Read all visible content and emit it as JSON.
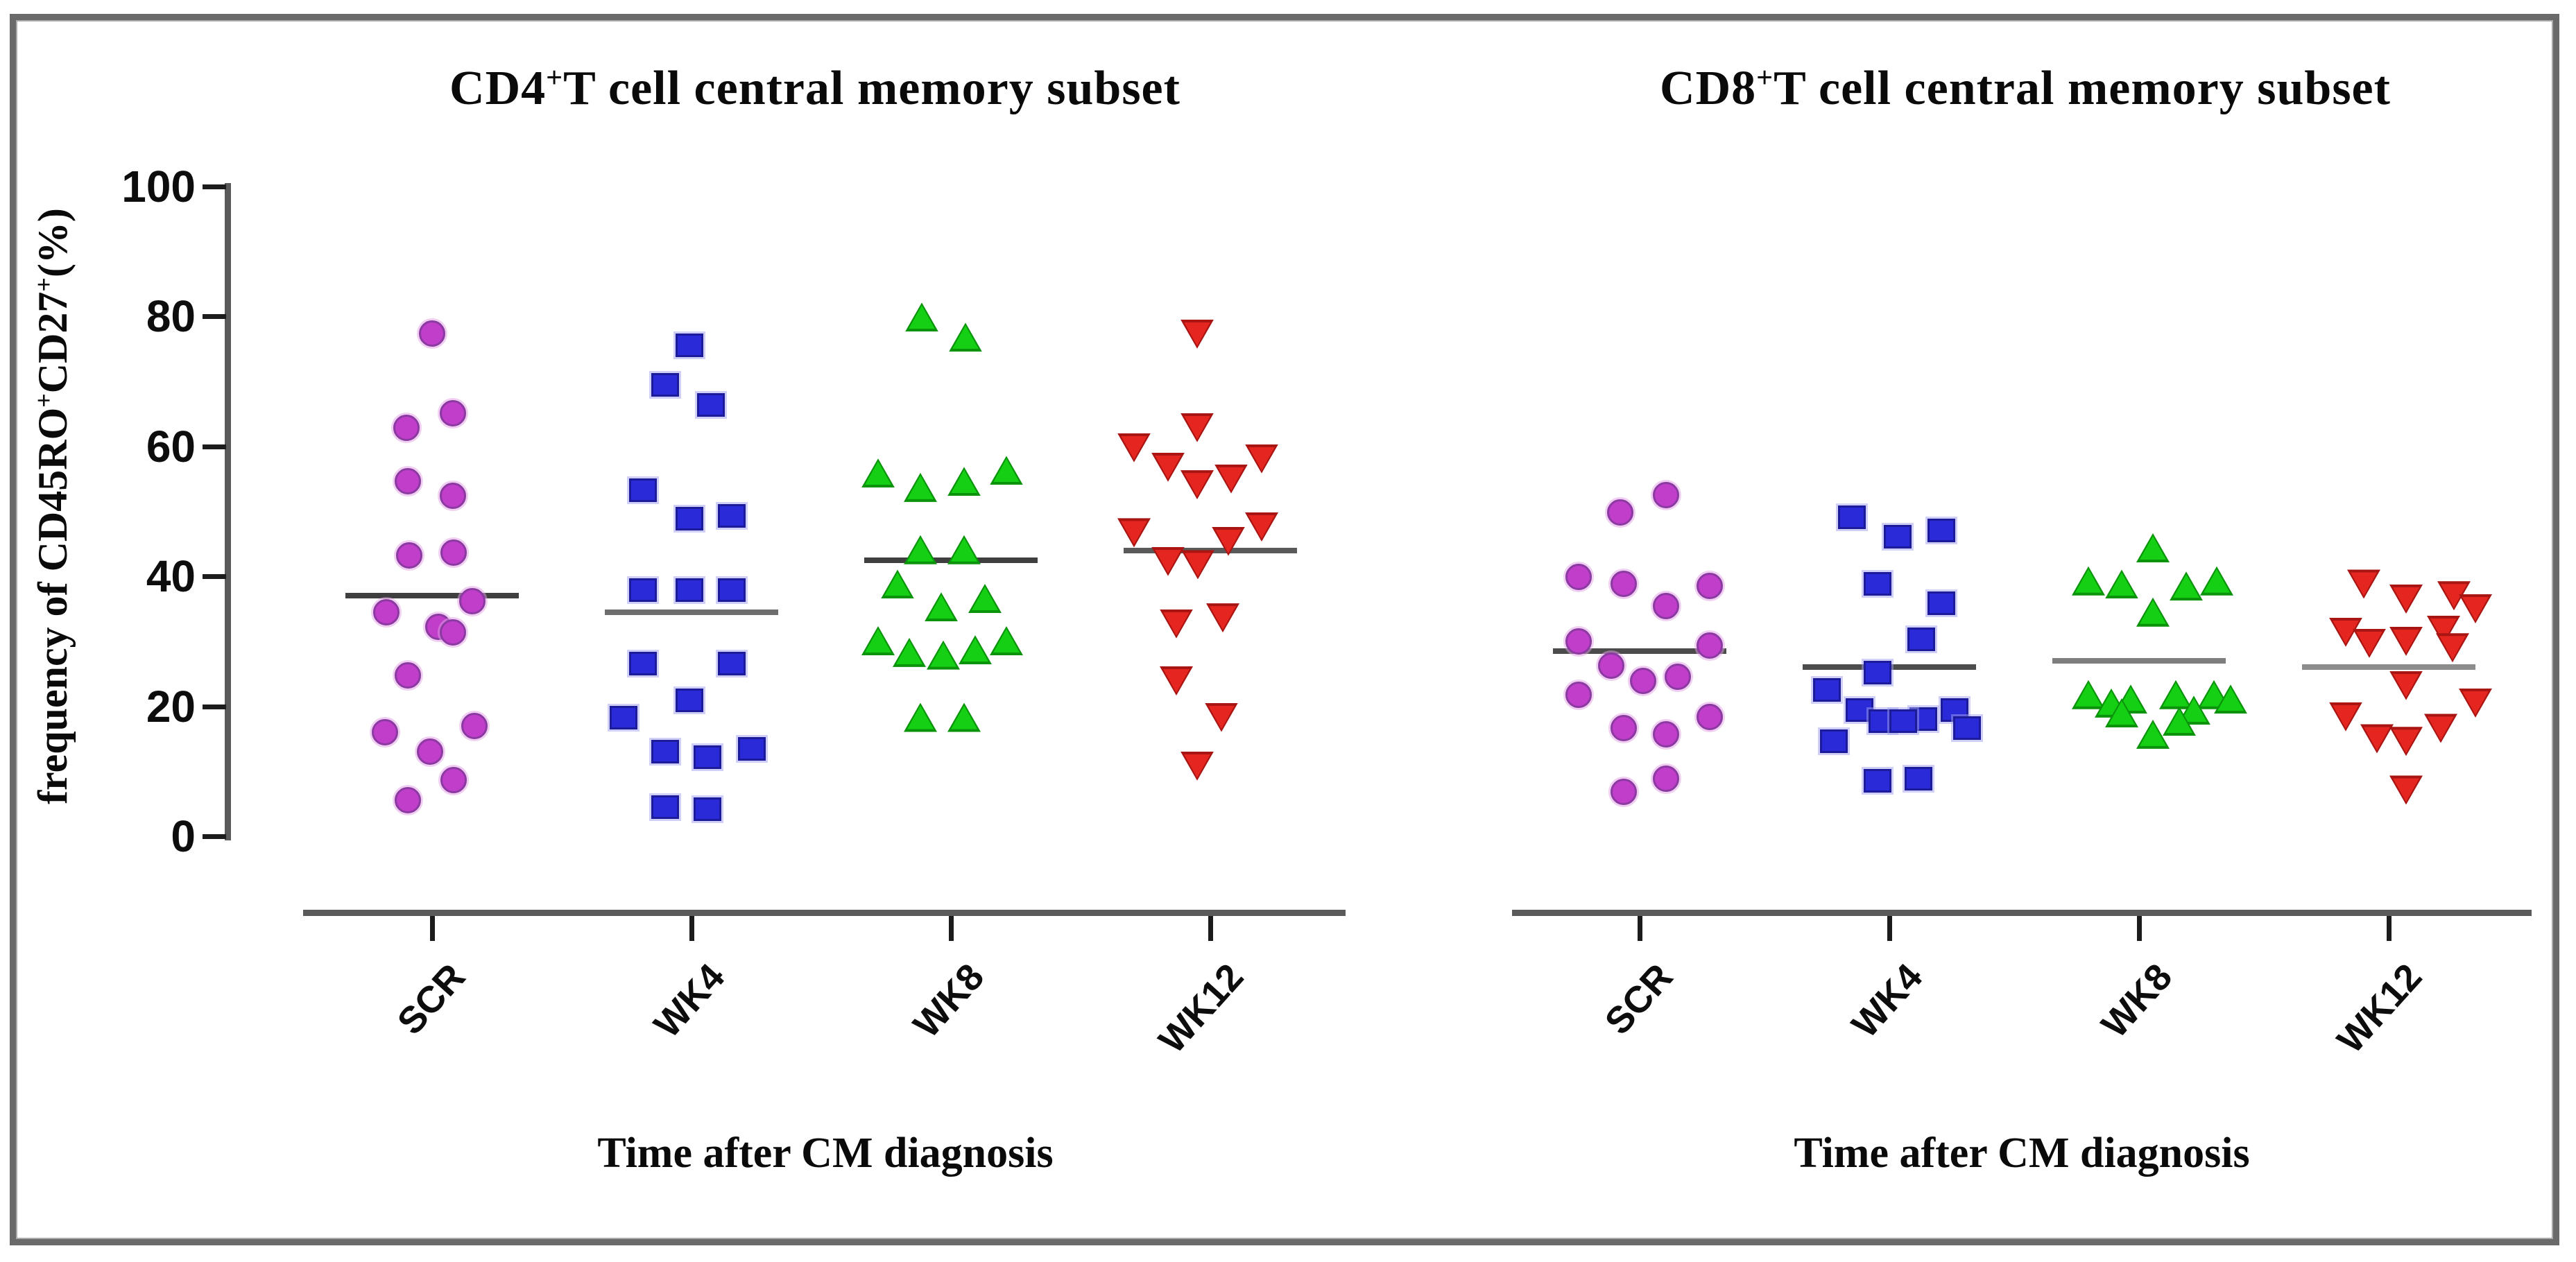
{
  "figure": {
    "border_color": "#6a6a6a",
    "background": "#ffffff"
  },
  "y_axis": {
    "label_parts": [
      "frequency of CD45RO",
      "+",
      "CD27",
      "+",
      "(%)"
    ]
  },
  "chart_data": [
    {
      "type": "scatter",
      "title": {
        "prefix": "CD4",
        "sup": "+",
        "suffix": "T cell central memory subset"
      },
      "xlabel": "Time after CM diagnosis",
      "ylabel": "frequency of CD45RO+CD27+(%)",
      "ylim": [
        0,
        100
      ],
      "yticks": [
        100,
        80,
        60,
        40,
        20,
        0
      ],
      "categories": [
        "SCR",
        "WK4",
        "WK8",
        "WK12"
      ],
      "legend": "none",
      "series": [
        {
          "name": "SCR",
          "marker": "circle",
          "fill": "#c13ecb",
          "edge": "#8a3aa0",
          "halo": "rgba(225,160,230,0.5)",
          "mean": 37,
          "mean_line_color": "#3f3f3f",
          "points": [
            [
              0,
              77.4
            ],
            [
              30,
              65.1
            ],
            [
              -37,
              62.9
            ],
            [
              -35,
              54.6
            ],
            [
              30,
              52.4
            ],
            [
              -33,
              43.2
            ],
            [
              31,
              43.6
            ],
            [
              58,
              36.2
            ],
            [
              -66,
              34.5
            ],
            [
              9,
              32.2
            ],
            [
              30,
              31.4
            ],
            [
              -35,
              24.8
            ],
            [
              61,
              17
            ],
            [
              -68,
              16
            ],
            [
              -3,
              13
            ],
            [
              31,
              8.6
            ],
            [
              -35,
              5.5
            ]
          ]
        },
        {
          "name": "WK4",
          "marker": "square",
          "fill": "#2a2ad8",
          "edge": "#1c1c9a",
          "halo": "rgba(160,160,240,0.5)",
          "mean": 34.5,
          "mean_line_color": "#6e6e6e",
          "points": [
            [
              -3,
              75.6
            ],
            [
              -38,
              69.5
            ],
            [
              28,
              66.4
            ],
            [
              -70,
              53.3
            ],
            [
              58,
              49.3
            ],
            [
              -3,
              48.9
            ],
            [
              -70,
              37.9
            ],
            [
              -3,
              37.9
            ],
            [
              58,
              37.9
            ],
            [
              -70,
              26.6
            ],
            [
              58,
              26.6
            ],
            [
              -3,
              20.9
            ],
            [
              -98,
              18.3
            ],
            [
              87,
              13.4
            ],
            [
              -38,
              13
            ],
            [
              23,
              12.2
            ],
            [
              -38,
              4.5
            ],
            [
              23,
              4.2
            ]
          ]
        },
        {
          "name": "WK8",
          "marker": "triangle-up",
          "fill": "#14cf14",
          "edge": "#0b930b",
          "halo": "rgba(170,235,170,0.5)",
          "mean": 42.5,
          "mean_line_color": "#3f3f3f",
          "points": [
            [
              -42,
              79.9
            ],
            [
              21,
              76.8
            ],
            [
              80,
              56.3
            ],
            [
              -105,
              55.9
            ],
            [
              19,
              54.6
            ],
            [
              -44,
              53.7
            ],
            [
              -44,
              44.1
            ],
            [
              19,
              44.1
            ],
            [
              -77,
              38.8
            ],
            [
              49,
              36.6
            ],
            [
              -14,
              35.3
            ],
            [
              -105,
              30.1
            ],
            [
              80,
              30.1
            ],
            [
              35,
              28.7
            ],
            [
              -60,
              28.3
            ],
            [
              -11,
              27.9
            ],
            [
              -44,
              18.3
            ],
            [
              19,
              18.3
            ]
          ]
        },
        {
          "name": "WK12",
          "marker": "triangle-down",
          "fill": "#e52620",
          "edge": "#a81512",
          "halo": "rgba(245,180,178,0.5)",
          "mean": 44,
          "mean_line_color": "#5a5a5a",
          "points": [
            [
              -19,
              77.3
            ],
            [
              -19,
              62.9
            ],
            [
              -110,
              59.8
            ],
            [
              74,
              58.1
            ],
            [
              -61,
              56.8
            ],
            [
              30,
              55
            ],
            [
              -19,
              54.1
            ],
            [
              74,
              47.6
            ],
            [
              -110,
              46.7
            ],
            [
              26,
              45.4
            ],
            [
              -61,
              42.3
            ],
            [
              -18,
              41.8
            ],
            [
              18,
              33.6
            ],
            [
              -49,
              32.7
            ],
            [
              -49,
              23.9
            ],
            [
              16,
              18.3
            ],
            [
              -19,
              10.8
            ]
          ]
        }
      ]
    },
    {
      "type": "scatter",
      "title": {
        "prefix": "CD8",
        "sup": "+",
        "suffix": "T cell central memory subset"
      },
      "xlabel": "Time after CM diagnosis",
      "ylabel": "frequency of CD45RO+CD27+(%)",
      "ylim": [
        0,
        100
      ],
      "yticks": [
        100,
        80,
        60,
        40,
        20,
        0
      ],
      "categories": [
        "SCR",
        "WK4",
        "WK8",
        "WK12"
      ],
      "legend": "none",
      "series": [
        {
          "name": "SCR",
          "marker": "circle",
          "fill": "#c13ecb",
          "edge": "#8a3aa0",
          "halo": "rgba(225,160,230,0.5)",
          "mean": 28.5,
          "mean_line_color": "#4c4c4c",
          "points": [
            [
              38,
              52.5
            ],
            [
              -28,
              49.8
            ],
            [
              -88,
              39.9
            ],
            [
              -23,
              38.8
            ],
            [
              101,
              38.5
            ],
            [
              38,
              35.4
            ],
            [
              -88,
              30
            ],
            [
              101,
              29.3
            ],
            [
              -41,
              26.3
            ],
            [
              55,
              24.5
            ],
            [
              5,
              23.9
            ],
            [
              -88,
              21.8
            ],
            [
              101,
              18.4
            ],
            [
              -23,
              16.6
            ],
            [
              38,
              15.7
            ],
            [
              38,
              8.9
            ],
            [
              -23,
              6.8
            ]
          ]
        },
        {
          "name": "WK4",
          "marker": "square",
          "fill": "#2a2ad8",
          "edge": "#1c1c9a",
          "halo": "rgba(160,160,240,0.5)",
          "mean": 26,
          "mean_line_color": "#4c4c4c",
          "points": [
            [
              -54,
              49.1
            ],
            [
              75,
              47.1
            ],
            [
              12,
              46.1
            ],
            [
              -17,
              38.8
            ],
            [
              75,
              35.9
            ],
            [
              46,
              30.3
            ],
            [
              -17,
              25.2
            ],
            [
              -90,
              22.5
            ],
            [
              -43,
              19.4
            ],
            [
              94,
              19.4
            ],
            [
              49,
              18
            ],
            [
              -10,
              17.7
            ],
            [
              20,
              17.7
            ],
            [
              112,
              16.6
            ],
            [
              -80,
              14.6
            ],
            [
              42,
              8.9
            ],
            [
              -17,
              8.5
            ]
          ]
        },
        {
          "name": "WK8",
          "marker": "triangle-up",
          "fill": "#14cf14",
          "edge": "#0b930b",
          "halo": "rgba(170,235,170,0.5)",
          "mean": 27,
          "mean_line_color": "#7e7e7e",
          "points": [
            [
              20,
              44.4
            ],
            [
              -73,
              39.3
            ],
            [
              112,
              39.3
            ],
            [
              -25,
              38.8
            ],
            [
              68,
              38.5
            ],
            [
              20,
              34.5
            ],
            [
              -73,
              21.8
            ],
            [
              53,
              21.8
            ],
            [
              108,
              21.8
            ],
            [
              -12,
              21.1
            ],
            [
              132,
              21.1
            ],
            [
              -40,
              20.5
            ],
            [
              -25,
              19
            ],
            [
              79,
              19.4
            ],
            [
              58,
              17.7
            ],
            [
              20,
              15.7
            ]
          ]
        },
        {
          "name": "WK12",
          "marker": "triangle-down",
          "fill": "#e52620",
          "edge": "#a81512",
          "halo": "rgba(245,180,178,0.5)",
          "mean": 26,
          "mean_line_color": "#8c8c8c",
          "points": [
            [
              -36,
              38.8
            ],
            [
              94,
              37
            ],
            [
              25,
              36.5
            ],
            [
              125,
              35
            ],
            [
              79,
              31.7
            ],
            [
              -62,
              31.4
            ],
            [
              25,
              30
            ],
            [
              -28,
              29.7
            ],
            [
              92,
              29
            ],
            [
              25,
              23.2
            ],
            [
              125,
              20.5
            ],
            [
              -62,
              18.4
            ],
            [
              75,
              16.6
            ],
            [
              -17,
              15
            ],
            [
              25,
              14.6
            ],
            [
              25,
              7.1
            ]
          ]
        }
      ]
    }
  ]
}
